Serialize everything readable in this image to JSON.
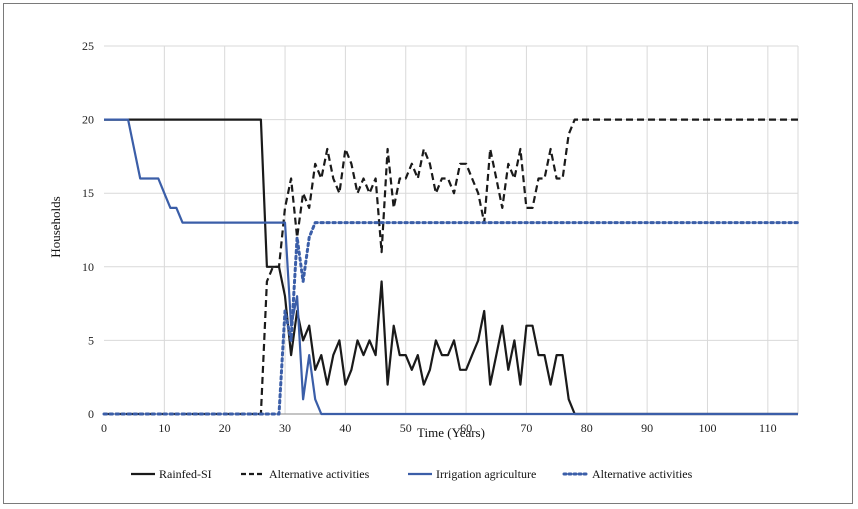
{
  "chart_data": {
    "type": "line",
    "title": "",
    "xlabel": "Time (Years)",
    "ylabel": "Households",
    "xlim": [
      0,
      115
    ],
    "ylim": [
      0,
      25
    ],
    "xticks": [
      0,
      10,
      20,
      30,
      40,
      50,
      60,
      70,
      80,
      90,
      100,
      110
    ],
    "yticks": [
      0,
      5,
      10,
      15,
      20,
      25
    ],
    "grid": "vertical and horizontal",
    "legend_position": "bottom",
    "series": [
      {
        "name": "Rainfed-SI",
        "color": "#1a1a1a",
        "style": "solid",
        "points": [
          [
            0,
            20
          ],
          [
            26,
            20
          ],
          [
            27,
            10
          ],
          [
            28,
            10
          ],
          [
            29,
            10
          ],
          [
            30,
            8
          ],
          [
            31,
            4
          ],
          [
            32,
            7
          ],
          [
            33,
            5
          ],
          [
            34,
            6
          ],
          [
            35,
            3
          ],
          [
            36,
            4
          ],
          [
            37,
            2
          ],
          [
            38,
            4
          ],
          [
            39,
            5
          ],
          [
            40,
            2
          ],
          [
            41,
            3
          ],
          [
            42,
            5
          ],
          [
            43,
            4
          ],
          [
            44,
            5
          ],
          [
            45,
            4
          ],
          [
            46,
            9
          ],
          [
            47,
            2
          ],
          [
            48,
            6
          ],
          [
            49,
            4
          ],
          [
            50,
            4
          ],
          [
            51,
            3
          ],
          [
            52,
            4
          ],
          [
            53,
            2
          ],
          [
            54,
            3
          ],
          [
            55,
            5
          ],
          [
            56,
            4
          ],
          [
            57,
            4
          ],
          [
            58,
            5
          ],
          [
            59,
            3
          ],
          [
            60,
            3
          ],
          [
            61,
            4
          ],
          [
            62,
            5
          ],
          [
            63,
            7
          ],
          [
            64,
            2
          ],
          [
            65,
            4
          ],
          [
            66,
            6
          ],
          [
            67,
            3
          ],
          [
            68,
            5
          ],
          [
            69,
            2
          ],
          [
            70,
            6
          ],
          [
            71,
            6
          ],
          [
            72,
            4
          ],
          [
            73,
            4
          ],
          [
            74,
            2
          ],
          [
            75,
            4
          ],
          [
            76,
            4
          ],
          [
            77,
            1
          ],
          [
            78,
            0
          ],
          [
            115,
            0
          ]
        ]
      },
      {
        "name": "Alternative activities",
        "color": "#1a1a1a",
        "style": "dashed",
        "points": [
          [
            0,
            0
          ],
          [
            26,
            0
          ],
          [
            27,
            9
          ],
          [
            28,
            10
          ],
          [
            29,
            10
          ],
          [
            30,
            14
          ],
          [
            31,
            16
          ],
          [
            32,
            12
          ],
          [
            33,
            15
          ],
          [
            34,
            14
          ],
          [
            35,
            17
          ],
          [
            36,
            16
          ],
          [
            37,
            18
          ],
          [
            38,
            16
          ],
          [
            39,
            15
          ],
          [
            40,
            18
          ],
          [
            41,
            17
          ],
          [
            42,
            15
          ],
          [
            43,
            16
          ],
          [
            44,
            15
          ],
          [
            45,
            16
          ],
          [
            46,
            11
          ],
          [
            47,
            18
          ],
          [
            48,
            14
          ],
          [
            49,
            16
          ],
          [
            50,
            16
          ],
          [
            51,
            17
          ],
          [
            52,
            16
          ],
          [
            53,
            18
          ],
          [
            54,
            17
          ],
          [
            55,
            15
          ],
          [
            56,
            16
          ],
          [
            57,
            16
          ],
          [
            58,
            15
          ],
          [
            59,
            17
          ],
          [
            60,
            17
          ],
          [
            61,
            16
          ],
          [
            62,
            15
          ],
          [
            63,
            13
          ],
          [
            64,
            18
          ],
          [
            65,
            16
          ],
          [
            66,
            14
          ],
          [
            67,
            17
          ],
          [
            68,
            16
          ],
          [
            69,
            18
          ],
          [
            70,
            14
          ],
          [
            71,
            14
          ],
          [
            72,
            16
          ],
          [
            73,
            16
          ],
          [
            74,
            18
          ],
          [
            75,
            16
          ],
          [
            76,
            16
          ],
          [
            77,
            19
          ],
          [
            78,
            20
          ],
          [
            115,
            20
          ]
        ]
      },
      {
        "name": "Irrigation agriculture",
        "color": "#3b5ea8",
        "style": "solid",
        "points": [
          [
            0,
            20
          ],
          [
            4,
            20
          ],
          [
            6,
            16
          ],
          [
            9,
            16
          ],
          [
            10,
            15
          ],
          [
            11,
            14
          ],
          [
            12,
            14
          ],
          [
            13,
            13
          ],
          [
            30,
            13
          ],
          [
            31,
            6
          ],
          [
            32,
            8
          ],
          [
            33,
            1
          ],
          [
            34,
            4
          ],
          [
            35,
            1
          ],
          [
            36,
            0
          ],
          [
            115,
            0
          ]
        ]
      },
      {
        "name": "Alternative activities",
        "color": "#3b5ea8",
        "style": "dotted",
        "points": [
          [
            0,
            0
          ],
          [
            29,
            0
          ],
          [
            30,
            7
          ],
          [
            31,
            5
          ],
          [
            32,
            12
          ],
          [
            33,
            9
          ],
          [
            34,
            12
          ],
          [
            35,
            13
          ],
          [
            36,
            13
          ],
          [
            115,
            13
          ]
        ]
      }
    ]
  }
}
